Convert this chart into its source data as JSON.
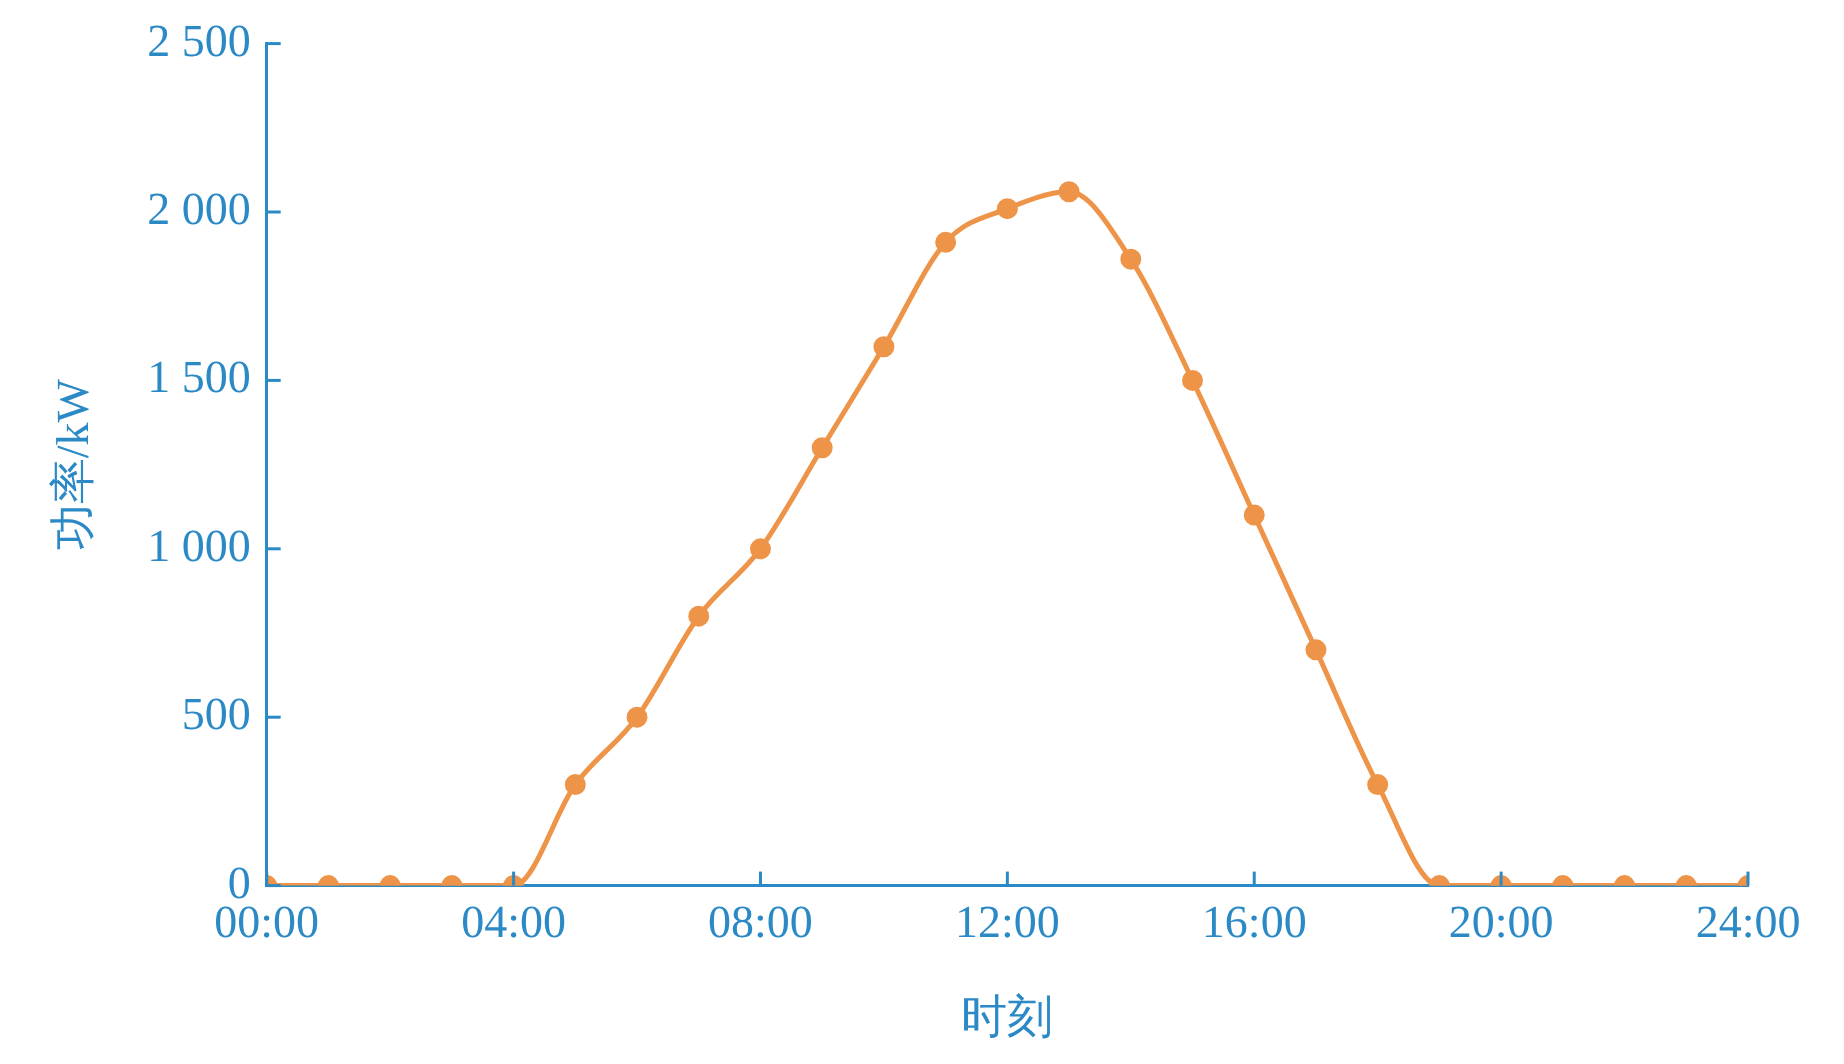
{
  "chart_data": {
    "type": "line",
    "xlabel": "时刻",
    "ylabel": "功率/kW",
    "x": [
      0,
      1,
      2,
      3,
      4,
      5,
      6,
      7,
      8,
      9,
      10,
      11,
      12,
      13,
      14,
      15,
      16,
      17,
      18,
      19,
      20,
      21,
      22,
      23,
      24
    ],
    "series": [
      {
        "color": "#ee9448",
        "values": [
          0,
          0,
          0,
          0,
          0,
          300,
          500,
          800,
          1000,
          1300,
          1600,
          1910,
          2010,
          2060,
          1860,
          1500,
          1100,
          700,
          300,
          0,
          0,
          0,
          0,
          0,
          0
        ]
      }
    ],
    "xlim": [
      0,
      24
    ],
    "xticks": [
      {
        "value": 0,
        "label": "00:00"
      },
      {
        "value": 4,
        "label": "04:00"
      },
      {
        "value": 8,
        "label": "08:00"
      },
      {
        "value": 12,
        "label": "12:00"
      },
      {
        "value": 16,
        "label": "16:00"
      },
      {
        "value": 20,
        "label": "20:00"
      },
      {
        "value": 24,
        "label": "24:00"
      }
    ],
    "ylim": [
      0,
      2500
    ],
    "yticks": [
      0,
      500,
      {
        "value": 1000,
        "label": "1 000"
      },
      {
        "value": 1500,
        "label": "1 500"
      },
      {
        "value": 2000,
        "label": "2 000"
      },
      {
        "value": 2500,
        "label": "2 500"
      }
    ],
    "grid": false,
    "legend": false,
    "marker": "circle",
    "line_style": "solid"
  }
}
